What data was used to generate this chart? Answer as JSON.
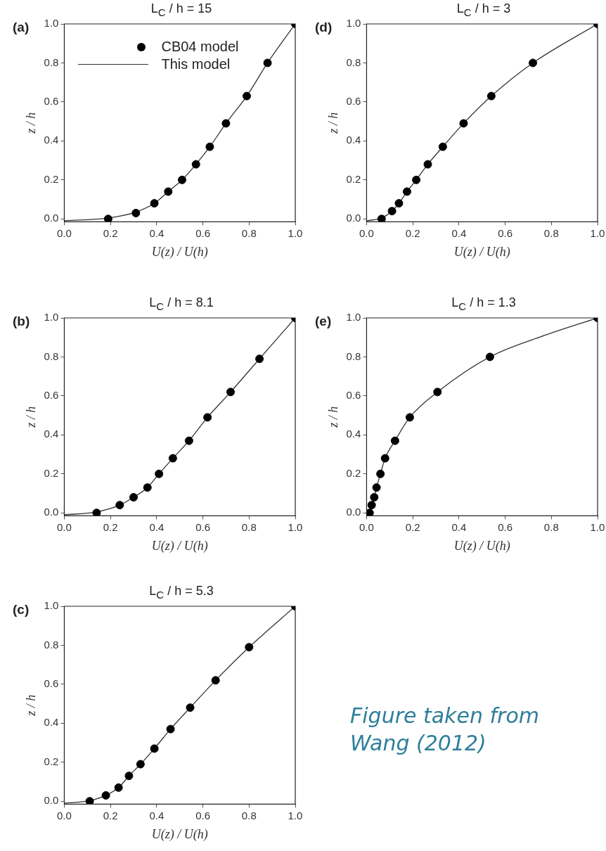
{
  "chart_data": [
    {
      "type": "scatter",
      "title": "L$_{C}$ / h = 15",
      "xlabel": "U(z) / U(h)",
      "ylabel": "z / h",
      "annotations": [
        "(a)"
      ],
      "legend": "top left",
      "line_style": "solid",
      "grid": false,
      "xlim": [
        0,
        1
      ],
      "xticks": [
        {
          "value": 0,
          "label": "0.0"
        },
        {
          "value": 0.2,
          "label": "0.2"
        },
        {
          "value": 0.4,
          "label": "0.4"
        },
        {
          "value": 0.6,
          "label": "0.6"
        },
        {
          "value": 0.8,
          "label": "0.8"
        },
        {
          "value": 1,
          "label": "1.0"
        }
      ],
      "ylim": [
        -0.015,
        1
      ],
      "yticks": [
        {
          "value": 0,
          "label": "0.0"
        },
        {
          "value": 0.2,
          "label": "0.2"
        },
        {
          "value": 0.4,
          "label": "0.4"
        },
        {
          "value": 0.6,
          "label": "0.6"
        },
        {
          "value": 0.8,
          "label": "0.8"
        },
        {
          "value": 1,
          "label": "1.0"
        }
      ],
      "series": [
        {
          "name": "CB04 model",
          "marker": "circle",
          "color": "#000000",
          "x": [
            0.19,
            0.31,
            0.39,
            0.45,
            0.51,
            0.57,
            0.63,
            0.7,
            0.79,
            0.88,
            1.0
          ],
          "values": [
            0.0,
            0.03,
            0.08,
            0.14,
            0.2,
            0.28,
            0.37,
            0.49,
            0.63,
            0.8,
            1.0
          ]
        },
        {
          "name": "This model",
          "type": "line",
          "marker": "none",
          "color": "#333333",
          "x": [
            0,
            0.19,
            0.31,
            0.39,
            0.45,
            0.51,
            0.57,
            0.63,
            0.7,
            0.79,
            0.88,
            1.0
          ],
          "values": [
            -0.01,
            0.005,
            0.035,
            0.08,
            0.14,
            0.2,
            0.28,
            0.37,
            0.49,
            0.63,
            0.8,
            1.0
          ]
        }
      ]
    },
    {
      "type": "scatter",
      "title": "L$_{C}$ / h = 3",
      "xlabel": "U(z) / U(h)",
      "ylabel": "z / h",
      "annotations": [
        "(d)"
      ],
      "line_style": "solid",
      "grid": false,
      "xlim": [
        0,
        1
      ],
      "xticks": [
        {
          "value": 0,
          "label": "0.0"
        },
        {
          "value": 0.2,
          "label": "0.2"
        },
        {
          "value": 0.4,
          "label": "0.4"
        },
        {
          "value": 0.6,
          "label": "0.6"
        },
        {
          "value": 0.8,
          "label": "0.8"
        },
        {
          "value": 1,
          "label": "1.0"
        }
      ],
      "ylim": [
        -0.015,
        1
      ],
      "yticks": [
        {
          "value": 0,
          "label": "0.0"
        },
        {
          "value": 0.2,
          "label": "0.2"
        },
        {
          "value": 0.4,
          "label": "0.4"
        },
        {
          "value": 0.6,
          "label": "0.6"
        },
        {
          "value": 0.8,
          "label": "0.8"
        },
        {
          "value": 1,
          "label": "1.0"
        }
      ],
      "series": [
        {
          "marker": "circle",
          "color": "#000000",
          "x": [
            0.065,
            0.11,
            0.14,
            0.175,
            0.215,
            0.265,
            0.33,
            0.42,
            0.54,
            0.72,
            1.0
          ],
          "values": [
            0.0,
            0.04,
            0.08,
            0.14,
            0.2,
            0.28,
            0.37,
            0.49,
            0.63,
            0.8,
            1.0
          ]
        },
        {
          "type": "line",
          "marker": "none",
          "color": "#333333",
          "x": [
            0,
            0.065,
            0.11,
            0.14,
            0.175,
            0.215,
            0.265,
            0.33,
            0.42,
            0.54,
            0.72,
            1.0
          ],
          "values": [
            -0.01,
            0.005,
            0.04,
            0.08,
            0.14,
            0.2,
            0.28,
            0.37,
            0.49,
            0.63,
            0.8,
            1.0
          ]
        }
      ]
    },
    {
      "type": "scatter",
      "title": "L$_{C}$ / h = 8.1",
      "xlabel": "U(z) / U(h)",
      "ylabel": "z / h",
      "annotations": [
        "(b)"
      ],
      "line_style": "solid",
      "grid": false,
      "xlim": [
        0,
        1
      ],
      "xticks": [
        {
          "value": 0,
          "label": "0.0"
        },
        {
          "value": 0.2,
          "label": "0.2"
        },
        {
          "value": 0.4,
          "label": "0.4"
        },
        {
          "value": 0.6,
          "label": "0.6"
        },
        {
          "value": 0.8,
          "label": "0.8"
        },
        {
          "value": 1,
          "label": "1.0"
        }
      ],
      "ylim": [
        -0.015,
        1
      ],
      "yticks": [
        {
          "value": 0,
          "label": "0.0"
        },
        {
          "value": 0.2,
          "label": "0.2"
        },
        {
          "value": 0.4,
          "label": "0.4"
        },
        {
          "value": 0.6,
          "label": "0.6"
        },
        {
          "value": 0.8,
          "label": "0.8"
        },
        {
          "value": 1,
          "label": "1.0"
        }
      ],
      "series": [
        {
          "marker": "circle",
          "color": "#000000",
          "x": [
            0.14,
            0.24,
            0.3,
            0.36,
            0.41,
            0.47,
            0.54,
            0.62,
            0.72,
            0.845,
            1.0
          ],
          "values": [
            0.0,
            0.04,
            0.08,
            0.13,
            0.2,
            0.28,
            0.37,
            0.49,
            0.62,
            0.79,
            1.0
          ]
        },
        {
          "type": "line",
          "marker": "none",
          "color": "#333333",
          "x": [
            0,
            0.14,
            0.24,
            0.3,
            0.36,
            0.41,
            0.47,
            0.54,
            0.62,
            0.72,
            0.845,
            1.0
          ],
          "values": [
            -0.01,
            0.005,
            0.04,
            0.08,
            0.13,
            0.2,
            0.28,
            0.37,
            0.49,
            0.62,
            0.79,
            1.0
          ]
        }
      ]
    },
    {
      "type": "scatter",
      "title": "L$_{C}$ / h = 1.3",
      "xlabel": "U(z) / U(h)",
      "ylabel": "z / h",
      "annotations": [
        "(e)"
      ],
      "line_style": "solid",
      "grid": false,
      "xlim": [
        0,
        1
      ],
      "xticks": [
        {
          "value": 0,
          "label": "0.0"
        },
        {
          "value": 0.2,
          "label": "0.2"
        },
        {
          "value": 0.4,
          "label": "0.4"
        },
        {
          "value": 0.6,
          "label": "0.6"
        },
        {
          "value": 0.8,
          "label": "0.8"
        },
        {
          "value": 1,
          "label": "1.0"
        }
      ],
      "ylim": [
        -0.015,
        1
      ],
      "yticks": [
        {
          "value": 0,
          "label": "0.0"
        },
        {
          "value": 0.2,
          "label": "0.2"
        },
        {
          "value": 0.4,
          "label": "0.4"
        },
        {
          "value": 0.6,
          "label": "0.6"
        },
        {
          "value": 0.8,
          "label": "0.8"
        },
        {
          "value": 1,
          "label": "1.0"
        }
      ],
      "series": [
        {
          "marker": "circle",
          "color": "#000000",
          "x": [
            0.013,
            0.022,
            0.033,
            0.043,
            0.06,
            0.08,
            0.123,
            0.187,
            0.307,
            0.534,
            1.0
          ],
          "values": [
            0.0,
            0.04,
            0.08,
            0.13,
            0.2,
            0.28,
            0.37,
            0.49,
            0.62,
            0.8,
            1.0
          ]
        },
        {
          "type": "line",
          "marker": "none",
          "color": "#333333",
          "x": [
            0,
            0.013,
            0.022,
            0.033,
            0.043,
            0.06,
            0.08,
            0.123,
            0.187,
            0.307,
            0.534,
            0.77,
            1.0
          ],
          "values": [
            -0.01,
            0.0,
            0.04,
            0.08,
            0.13,
            0.2,
            0.28,
            0.37,
            0.49,
            0.62,
            0.8,
            0.91,
            1.0
          ]
        }
      ]
    },
    {
      "type": "scatter",
      "title": "L$_{C}$ / h = 5.3",
      "xlabel": "U(z) / U(h)",
      "ylabel": "z / h",
      "annotations": [
        "(c)",
        "Figure taken from Wang (2012)"
      ],
      "line_style": "solid",
      "grid": false,
      "xlim": [
        0,
        1
      ],
      "xticks": [
        {
          "value": 0,
          "label": "0.0"
        },
        {
          "value": 0.2,
          "label": "0.2"
        },
        {
          "value": 0.4,
          "label": "0.4"
        },
        {
          "value": 0.6,
          "label": "0.6"
        },
        {
          "value": 0.8,
          "label": "0.8"
        },
        {
          "value": 1,
          "label": "1.0"
        }
      ],
      "ylim": [
        -0.015,
        1
      ],
      "yticks": [
        {
          "value": 0,
          "label": "0.0"
        },
        {
          "value": 0.2,
          "label": "0.2"
        },
        {
          "value": 0.4,
          "label": "0.4"
        },
        {
          "value": 0.6,
          "label": "0.6"
        },
        {
          "value": 0.8,
          "label": "0.8"
        },
        {
          "value": 1,
          "label": "1.0"
        }
      ],
      "series": [
        {
          "marker": "circle",
          "color": "#000000",
          "x": [
            0.11,
            0.18,
            0.235,
            0.28,
            0.33,
            0.39,
            0.46,
            0.545,
            0.655,
            0.8,
            1.0
          ],
          "values": [
            0.0,
            0.03,
            0.07,
            0.13,
            0.19,
            0.27,
            0.37,
            0.48,
            0.62,
            0.79,
            1.0
          ]
        },
        {
          "type": "line",
          "marker": "none",
          "color": "#333333",
          "x": [
            0,
            0.11,
            0.18,
            0.235,
            0.28,
            0.33,
            0.39,
            0.46,
            0.545,
            0.655,
            0.8,
            1.0
          ],
          "values": [
            -0.01,
            0.003,
            0.03,
            0.07,
            0.13,
            0.19,
            0.27,
            0.37,
            0.48,
            0.62,
            0.79,
            1.0
          ]
        }
      ]
    }
  ]
}
